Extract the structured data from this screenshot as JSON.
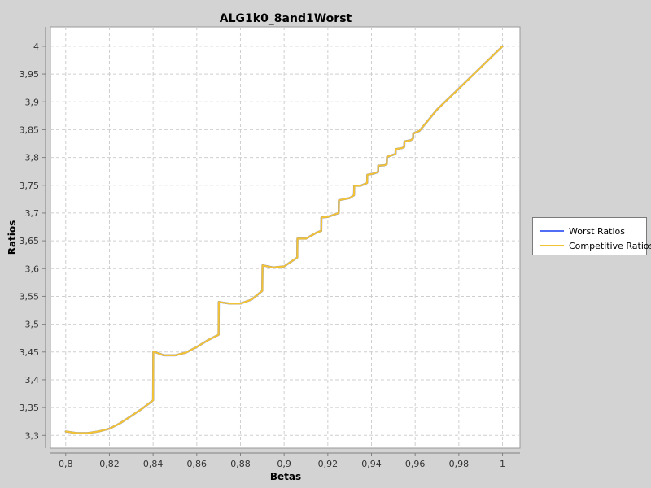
{
  "chart_data": {
    "type": "line",
    "title": "ALG1k0_8and1Worst",
    "xlabel": "Betas",
    "ylabel": "Ratios",
    "xlim": [
      0.793,
      1.008
    ],
    "ylim": [
      3.277,
      4.035
    ],
    "x_ticks": [
      "0,8",
      "0,82",
      "0,84",
      "0,86",
      "0,88",
      "0,9",
      "0,92",
      "0,94",
      "0,96",
      "0,98",
      "1"
    ],
    "x_tick_values": [
      0.8,
      0.82,
      0.84,
      0.86,
      0.88,
      0.9,
      0.92,
      0.94,
      0.96,
      0.98,
      1.0
    ],
    "y_ticks": [
      "3,3",
      "3,35",
      "3,4",
      "3,45",
      "3,5",
      "3,55",
      "3,6",
      "3,65",
      "3,7",
      "3,75",
      "3,8",
      "3,85",
      "3,9",
      "3,95",
      "4"
    ],
    "y_tick_values": [
      3.3,
      3.35,
      3.4,
      3.45,
      3.5,
      3.55,
      3.6,
      3.65,
      3.7,
      3.75,
      3.8,
      3.85,
      3.9,
      3.95,
      4.0
    ],
    "grid": true,
    "legend_position": "right",
    "series": [
      {
        "name": "Worst Ratios",
        "color": "#4f6df5",
        "x": [
          0.8,
          0.805,
          0.81,
          0.815,
          0.82,
          0.825,
          0.83,
          0.835,
          0.84,
          0.8401,
          0.845,
          0.85,
          0.855,
          0.86,
          0.865,
          0.87,
          0.8701,
          0.875,
          0.88,
          0.885,
          0.89,
          0.8901,
          0.895,
          0.9,
          0.906,
          0.9061,
          0.91,
          0.915,
          0.917,
          0.9171,
          0.92,
          0.925,
          0.9251,
          0.93,
          0.932,
          0.9321,
          0.935,
          0.938,
          0.9381,
          0.941,
          0.943,
          0.9431,
          0.946,
          0.947,
          0.9471,
          0.95,
          0.951,
          0.9511,
          0.954,
          0.955,
          0.9551,
          0.958,
          0.959,
          0.9591,
          0.962,
          0.97,
          0.98,
          0.99,
          1.0
        ],
        "y": [
          3.307,
          3.304,
          3.304,
          3.307,
          3.312,
          3.322,
          3.335,
          3.348,
          3.363,
          3.451,
          3.444,
          3.444,
          3.449,
          3.459,
          3.471,
          3.481,
          3.54,
          3.537,
          3.537,
          3.544,
          3.56,
          3.606,
          3.602,
          3.604,
          3.62,
          3.654,
          3.654,
          3.665,
          3.668,
          3.692,
          3.693,
          3.7,
          3.723,
          3.727,
          3.732,
          3.749,
          3.749,
          3.754,
          3.769,
          3.771,
          3.774,
          3.785,
          3.786,
          3.788,
          3.801,
          3.805,
          3.806,
          3.815,
          3.817,
          3.819,
          3.829,
          3.831,
          3.834,
          3.843,
          3.848,
          3.886,
          3.924,
          3.962,
          4.0
        ]
      },
      {
        "name": "Competitive Ratios",
        "color": "#f2c335",
        "x": [
          0.8,
          0.805,
          0.81,
          0.815,
          0.82,
          0.825,
          0.83,
          0.835,
          0.84,
          0.8401,
          0.845,
          0.85,
          0.855,
          0.86,
          0.865,
          0.87,
          0.8701,
          0.875,
          0.88,
          0.885,
          0.89,
          0.8901,
          0.895,
          0.9,
          0.906,
          0.9061,
          0.91,
          0.915,
          0.917,
          0.9171,
          0.92,
          0.925,
          0.9251,
          0.93,
          0.932,
          0.9321,
          0.935,
          0.938,
          0.9381,
          0.941,
          0.943,
          0.9431,
          0.946,
          0.947,
          0.9471,
          0.95,
          0.951,
          0.9511,
          0.954,
          0.955,
          0.9551,
          0.958,
          0.959,
          0.9591,
          0.962,
          0.97,
          0.98,
          0.99,
          1.0
        ],
        "y": [
          3.307,
          3.304,
          3.304,
          3.307,
          3.312,
          3.322,
          3.335,
          3.348,
          3.363,
          3.451,
          3.444,
          3.444,
          3.449,
          3.459,
          3.471,
          3.481,
          3.54,
          3.537,
          3.537,
          3.544,
          3.56,
          3.606,
          3.602,
          3.604,
          3.62,
          3.654,
          3.654,
          3.665,
          3.668,
          3.692,
          3.693,
          3.7,
          3.723,
          3.727,
          3.732,
          3.749,
          3.749,
          3.754,
          3.769,
          3.771,
          3.774,
          3.785,
          3.786,
          3.788,
          3.801,
          3.805,
          3.806,
          3.815,
          3.817,
          3.819,
          3.829,
          3.831,
          3.834,
          3.843,
          3.848,
          3.886,
          3.924,
          3.962,
          4.0
        ]
      }
    ]
  }
}
